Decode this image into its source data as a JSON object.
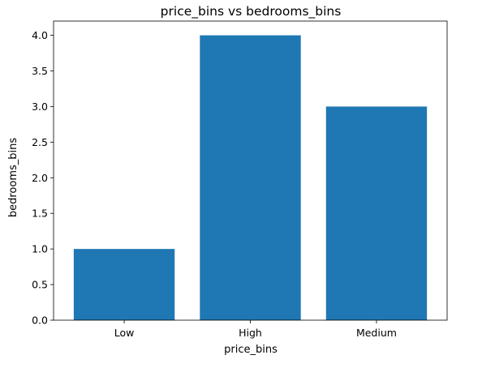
{
  "chart_data": {
    "type": "bar",
    "title": "price_bins vs bedrooms_bins",
    "xlabel": "price_bins",
    "ylabel": "bedrooms_bins",
    "categories": [
      "Low",
      "High",
      "Medium"
    ],
    "values": [
      1,
      4,
      3
    ],
    "ylim": [
      0,
      4.2
    ],
    "yticks": [
      "0.0",
      "0.5",
      "1.0",
      "1.5",
      "2.0",
      "2.5",
      "3.0",
      "3.5",
      "4.0"
    ],
    "bar_color": "#1f77b4",
    "grid": false,
    "legend": "none"
  }
}
